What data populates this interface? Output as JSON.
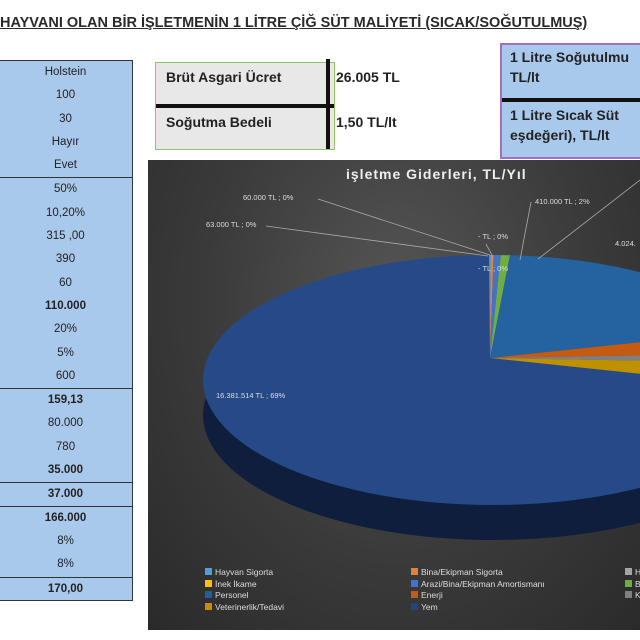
{
  "title": "HAYVANI OLAN BİR İŞLETMENİN 1 LİTRE  ÇİĞ SÜT MALİYETİ (SICAK/SOĞUTULMUŞ)",
  "left_column": [
    [
      {
        "v": "Holstein"
      },
      {
        "v": "100"
      },
      {
        "v": "30"
      },
      {
        "v": "Hayır"
      },
      {
        "v": "Evet"
      }
    ],
    [
      {
        "v": "50%"
      },
      {
        "v": "10,20%"
      },
      {
        "v": "315 ,00"
      },
      {
        "v": "390"
      },
      {
        "v": "60"
      },
      {
        "v": "110.000",
        "bold": true
      },
      {
        "v": "20%"
      },
      {
        "v": "5%"
      },
      {
        "v": "600"
      }
    ],
    [
      {
        "v": "159,13",
        "bold": true
      },
      {
        "v": "80.000"
      },
      {
        "v": "780"
      },
      {
        "v": "35.000",
        "bold": true
      }
    ],
    [
      {
        "v": "37.000",
        "bold": true
      }
    ],
    [
      {
        "v": "166.000",
        "bold": true
      },
      {
        "v": "8%"
      },
      {
        "v": "8%"
      }
    ],
    [
      {
        "v": "170,00",
        "bold": true
      }
    ]
  ],
  "green_table": {
    "r1_key": "Brüt Asgari Ücret",
    "r1_val": "26.005 TL",
    "r2_key": "Soğutma Bedeli",
    "r2_val": "1,50 TL/lt"
  },
  "purple_box": {
    "l1": "1 Litre Soğutulmu",
    "l2": "TL/lt",
    "l3": "1 Litre Sıcak Süt",
    "l4": "eşdeğeri), TL/lt"
  },
  "chart_data": {
    "type": "pie",
    "title": "işletme Giderleri, TL/Yıl",
    "three_d": true,
    "legend_placement": "bottom",
    "data_labels": [
      "60.000  TL ; 0%",
      "63.000  TL ; 0%",
      "-  TL ; 0%",
      "-  TL ; 0%",
      "410.000  TL ; 2%",
      "4.024.",
      "16.381.514  TL ; 69%"
    ],
    "legend": [
      {
        "name": "Hayvan Sigorta",
        "color": "#5b9bd5"
      },
      {
        "name": "Bina/Ekipman Sigorta",
        "color": "#ed7d31"
      },
      {
        "name": "Ha",
        "color": "#a5a5a5"
      },
      {
        "name": "İnek İkame",
        "color": "#ffc000"
      },
      {
        "name": "Arazi/Bina/Ekipman Amortismanı",
        "color": "#4472c4"
      },
      {
        "name": "Bir",
        "color": "#70ad47"
      },
      {
        "name": "Personel",
        "color": "#255e91"
      },
      {
        "name": "Enerji",
        "color": "#c55a11"
      },
      {
        "name": "Ko",
        "color": "#7f7f7f"
      },
      {
        "name": "Veterinerlik/Tedavi",
        "color": "#bf9000"
      },
      {
        "name": "Yem",
        "color": "#264478"
      }
    ],
    "slices": [
      {
        "name": "Hayvan Sigorta",
        "value": 60000,
        "percent": 0
      },
      {
        "name": "Bina/Ekipman Sigorta",
        "value": 63000,
        "percent": 0
      },
      {
        "name": "Arazi/Bina/Ekipman Amortismanı",
        "value": 410000,
        "percent": 2
      },
      {
        "name": "Personel",
        "percent": 17
      },
      {
        "name": "Yem",
        "value": 16381514,
        "percent": 69
      }
    ]
  }
}
